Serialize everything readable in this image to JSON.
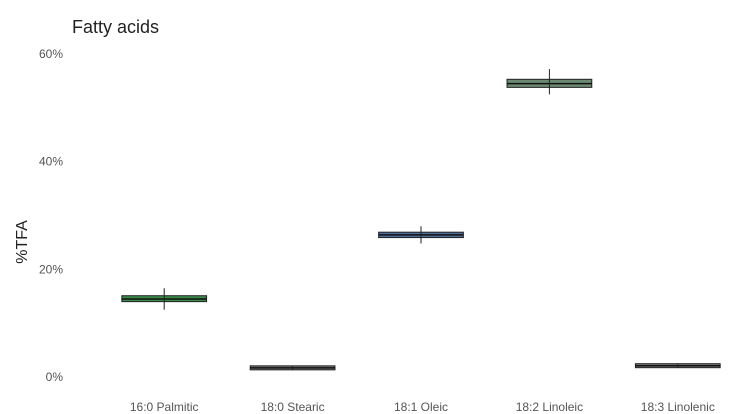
{
  "chart_data": {
    "type": "boxplot",
    "title": "Fatty acids",
    "xlabel": "",
    "ylabel": "%TFA",
    "ylim": [
      0,
      60
    ],
    "yticks": [
      0,
      20,
      40,
      60
    ],
    "ytick_labels": [
      "0%",
      "20%",
      "40%",
      "60%"
    ],
    "grid": false,
    "legend": "none",
    "categories": [
      "16:0 Palmitic",
      "18:0 Stearic",
      "18:1 Oleic",
      "18:2 Linoleic",
      "18:3 Linolenic"
    ],
    "boxes": [
      {
        "category": "16:0 Palmitic",
        "min": 12.5,
        "q1": 14.0,
        "median": 14.5,
        "q3": 15.1,
        "max": 16.5,
        "color": "#3a8a4a"
      },
      {
        "category": "18:0 Stearic",
        "min": 1.3,
        "q1": 1.5,
        "median": 1.7,
        "q3": 1.9,
        "max": 2.1,
        "color": "#7a7a7a"
      },
      {
        "category": "18:1 Oleic",
        "min": 24.8,
        "q1": 25.9,
        "median": 26.4,
        "q3": 26.9,
        "max": 28.0,
        "color": "#4f6f9a"
      },
      {
        "category": "18:2 Linoleic",
        "min": 52.5,
        "q1": 53.8,
        "median": 54.5,
        "q3": 55.3,
        "max": 57.2,
        "color": "#6b8a72"
      },
      {
        "category": "18:3 Linolenic",
        "min": 1.7,
        "q1": 1.9,
        "median": 2.1,
        "q3": 2.3,
        "max": 2.5,
        "color": "#7a7a7a"
      }
    ]
  }
}
